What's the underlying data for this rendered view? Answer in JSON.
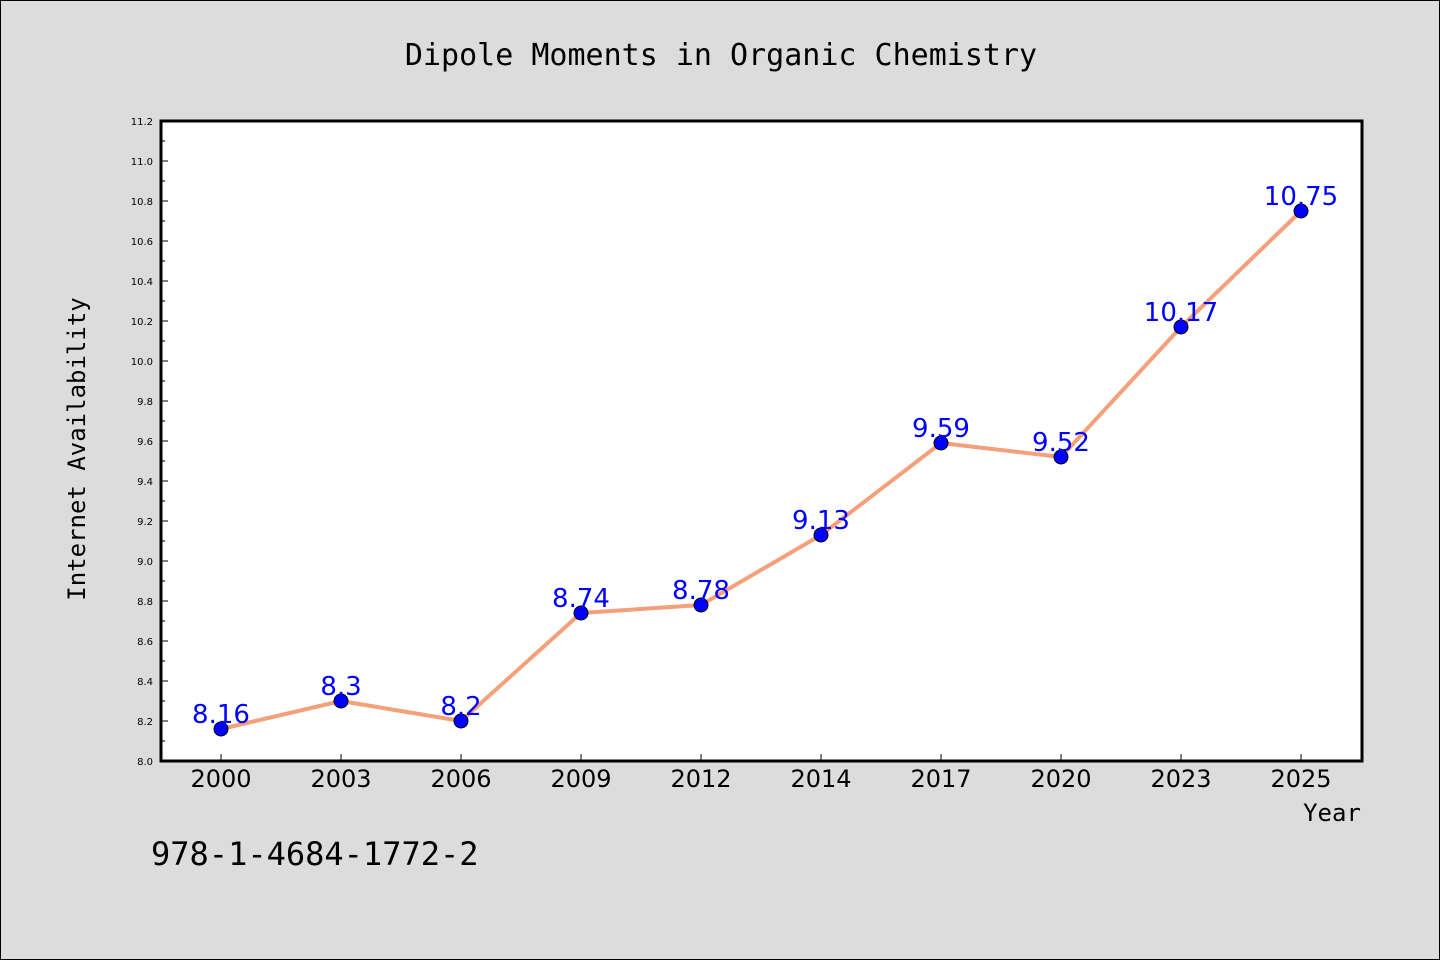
{
  "chart_data": {
    "type": "line",
    "title": "Dipole Moments in Organic Chemistry",
    "xlabel": "Year",
    "ylabel": "Internet Availability",
    "categories": [
      "2000",
      "2003",
      "2006",
      "2009",
      "2012",
      "2014",
      "2017",
      "2020",
      "2023",
      "2025"
    ],
    "series": [
      {
        "values": [
          8.16,
          8.3,
          8.2,
          8.74,
          8.78,
          9.13,
          9.59,
          9.52,
          10.17,
          10.75
        ],
        "labels": [
          "8.16",
          "8.3",
          "8.2",
          "8.74",
          "8.78",
          "9.13",
          "9.59",
          "9.52",
          "10.17",
          "10.75"
        ],
        "line_color": "#f4a07a",
        "marker_color": "#0000ff"
      }
    ],
    "ylim": [
      8.0,
      11.2
    ],
    "yticks": [
      "8.0",
      "8.2",
      "8.4",
      "8.6",
      "8.8",
      "9.0",
      "9.2",
      "9.4",
      "9.6",
      "9.8",
      "10.0",
      "10.2",
      "10.4",
      "10.6",
      "10.8",
      "11.0",
      "11.2"
    ],
    "grid": false,
    "legend": "none",
    "label_color": "#0000ff"
  },
  "footer": {
    "isbn": "978-1-4684-1772-2"
  },
  "colors": {
    "background": "#dcdcdc",
    "plot_background": "#ffffff"
  }
}
